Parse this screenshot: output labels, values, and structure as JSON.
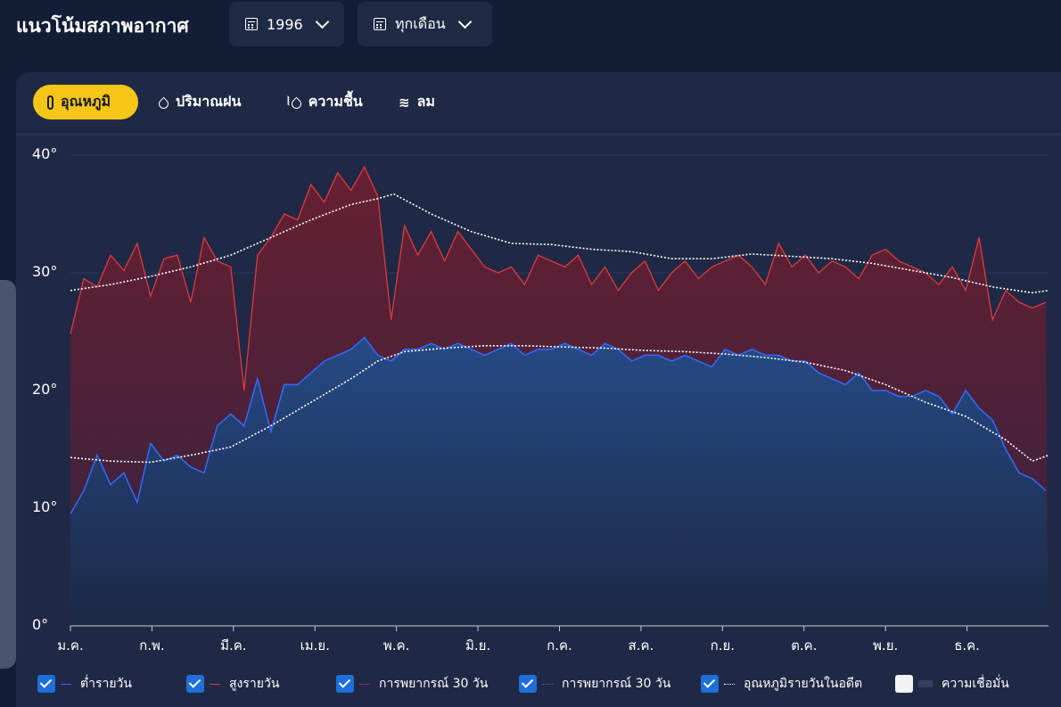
{
  "header": {
    "title": "แนวโน้มสภาพอากาศ",
    "year": "1996",
    "month": "ทุกเดือน"
  },
  "tabs": [
    {
      "label": "อุณหภูมิ",
      "active": true,
      "icon": "thermometer-icon"
    },
    {
      "label": "ปริมาณฝน",
      "active": false,
      "icon": "raindrop-icon"
    },
    {
      "label": "ความชื้น",
      "active": false,
      "icon": "humidity-icon"
    },
    {
      "label": "ลม",
      "active": false,
      "icon": "wind-icon"
    }
  ],
  "legend": [
    {
      "label": "ต่ำรายวัน",
      "checked": true,
      "color": "#2f6bff",
      "style": "solid"
    },
    {
      "label": "สูงรายวัน",
      "checked": true,
      "color": "#e0393e",
      "style": "solid"
    },
    {
      "label": "การพยากรณ์ 30 วัน",
      "checked": true,
      "color": "#e0393e",
      "style": "dotted"
    },
    {
      "label": "การพยากรณ์ 30 วัน",
      "checked": true,
      "color": "#2f6bff",
      "style": "dotted"
    },
    {
      "label": "อุณหภูมิรายวันในอดีต",
      "checked": true,
      "color": "#ffffff",
      "style": "dotted"
    },
    {
      "label": "ความเชื่อมั่น",
      "checked": false,
      "color": "#34405e",
      "style": "band"
    }
  ],
  "colors": {
    "background": "#141d36",
    "card": "#1f2945",
    "accent": "#f5c518",
    "high": "#e0393e",
    "low": "#2f6bff",
    "normal": "#ffffff"
  },
  "chart_data": {
    "type": "line",
    "ylim": [
      0,
      40
    ],
    "yticks": [
      "0°",
      "10°",
      "20°",
      "30°",
      "40°"
    ],
    "ytick_values": [
      0,
      10,
      20,
      30,
      40
    ],
    "xticks": [
      "ม.ค.",
      "ก.พ.",
      "มี.ค.",
      "เม.ย.",
      "พ.ค.",
      "มิ.ย.",
      "ก.ค.",
      "ส.ค.",
      "ก.ย.",
      "ต.ค.",
      "พ.ย.",
      "ธ.ค."
    ],
    "xlim": [
      0,
      366
    ],
    "series": [
      {
        "name": "สูงรายวัน",
        "x": [
          0,
          5,
          10,
          15,
          20,
          25,
          30,
          35,
          40,
          45,
          50,
          55,
          60,
          65,
          70,
          75,
          80,
          85,
          90,
          95,
          100,
          105,
          110,
          115,
          120,
          125,
          130,
          135,
          140,
          145,
          150,
          155,
          160,
          165,
          170,
          175,
          180,
          185,
          190,
          195,
          200,
          205,
          210,
          215,
          220,
          225,
          230,
          235,
          240,
          245,
          250,
          255,
          260,
          265,
          270,
          275,
          280,
          285,
          290,
          295,
          300,
          305,
          310,
          315,
          320,
          325,
          330,
          335,
          340,
          345,
          350,
          355,
          360,
          365
        ],
        "values": [
          24.8,
          29.5,
          28.8,
          31.5,
          30.2,
          32.5,
          28.0,
          31.2,
          31.5,
          27.5,
          33.0,
          31.0,
          30.5,
          20.0,
          31.5,
          33.0,
          35.0,
          34.5,
          37.5,
          36.0,
          38.5,
          37.0,
          39.0,
          36.5,
          26.0,
          34.0,
          31.5,
          33.5,
          31.0,
          33.5,
          32.0,
          30.5,
          30.0,
          30.5,
          29.0,
          31.5,
          31.0,
          30.5,
          31.5,
          29.0,
          30.5,
          28.5,
          30.0,
          31.0,
          28.5,
          30.0,
          31.0,
          29.5,
          30.5,
          31.0,
          31.5,
          30.5,
          29.0,
          32.5,
          30.5,
          31.5,
          30.0,
          31.0,
          30.5,
          29.5,
          31.5,
          32.0,
          31.0,
          30.5,
          30.0,
          29.0,
          30.5,
          28.5,
          33.0,
          26.0,
          28.5,
          27.5,
          27.0,
          27.5
        ]
      },
      {
        "name": "ต่ำรายวัน",
        "x": [
          0,
          5,
          10,
          15,
          20,
          25,
          30,
          35,
          40,
          45,
          50,
          55,
          60,
          65,
          70,
          75,
          80,
          85,
          90,
          95,
          100,
          105,
          110,
          115,
          120,
          125,
          130,
          135,
          140,
          145,
          150,
          155,
          160,
          165,
          170,
          175,
          180,
          185,
          190,
          195,
          200,
          205,
          210,
          215,
          220,
          225,
          230,
          235,
          240,
          245,
          250,
          255,
          260,
          265,
          270,
          275,
          280,
          285,
          290,
          295,
          300,
          305,
          310,
          315,
          320,
          325,
          330,
          335,
          340,
          345,
          350,
          355,
          360,
          365
        ],
        "values": [
          9.5,
          11.5,
          14.5,
          12.0,
          13.0,
          10.5,
          15.5,
          14.0,
          14.5,
          13.5,
          13.0,
          17.0,
          18.0,
          17.0,
          21.0,
          16.5,
          20.5,
          20.5,
          21.5,
          22.5,
          23.0,
          23.5,
          24.5,
          23.0,
          22.5,
          23.5,
          23.5,
          24.0,
          23.5,
          24.0,
          23.5,
          23.0,
          23.5,
          24.0,
          23.0,
          23.5,
          23.5,
          24.0,
          23.5,
          23.0,
          24.0,
          23.5,
          22.5,
          23.0,
          23.0,
          22.5,
          23.0,
          22.5,
          22.0,
          23.5,
          23.0,
          23.5,
          23.0,
          23.0,
          22.5,
          22.5,
          21.5,
          21.0,
          20.5,
          21.5,
          20.0,
          20.0,
          19.5,
          19.5,
          20.0,
          19.5,
          18.0,
          20.0,
          18.5,
          17.5,
          15.0,
          13.0,
          12.5,
          11.5
        ]
      },
      {
        "name": "อุณหภูมิรายวันในอดีต (สูง)",
        "x": [
          0,
          15,
          30,
          45,
          60,
          75,
          90,
          105,
          115,
          121,
          135,
          150,
          165,
          180,
          195,
          210,
          225,
          240,
          255,
          270,
          285,
          300,
          315,
          330,
          345,
          360,
          366
        ],
        "values": [
          28.5,
          29.0,
          29.7,
          30.5,
          31.5,
          33.0,
          34.5,
          35.8,
          36.3,
          36.7,
          35.0,
          33.5,
          32.5,
          32.4,
          32.0,
          31.8,
          31.2,
          31.2,
          31.6,
          31.4,
          31.2,
          30.8,
          30.2,
          29.6,
          28.8,
          28.3,
          28.5
        ]
      },
      {
        "name": "อุณหภูมิรายวันในอดีต (ต่ำ)",
        "x": [
          0,
          15,
          30,
          45,
          60,
          75,
          90,
          105,
          115,
          125,
          140,
          155,
          170,
          185,
          200,
          215,
          230,
          245,
          260,
          275,
          290,
          305,
          320,
          335,
          350,
          360,
          366
        ],
        "values": [
          14.3,
          14.0,
          13.9,
          14.5,
          15.2,
          17.0,
          19.0,
          21.0,
          22.5,
          23.3,
          23.6,
          23.8,
          23.8,
          23.7,
          23.6,
          23.4,
          23.3,
          23.1,
          22.8,
          22.4,
          21.7,
          20.5,
          19.0,
          17.8,
          15.8,
          14.0,
          14.5
        ]
      }
    ]
  }
}
